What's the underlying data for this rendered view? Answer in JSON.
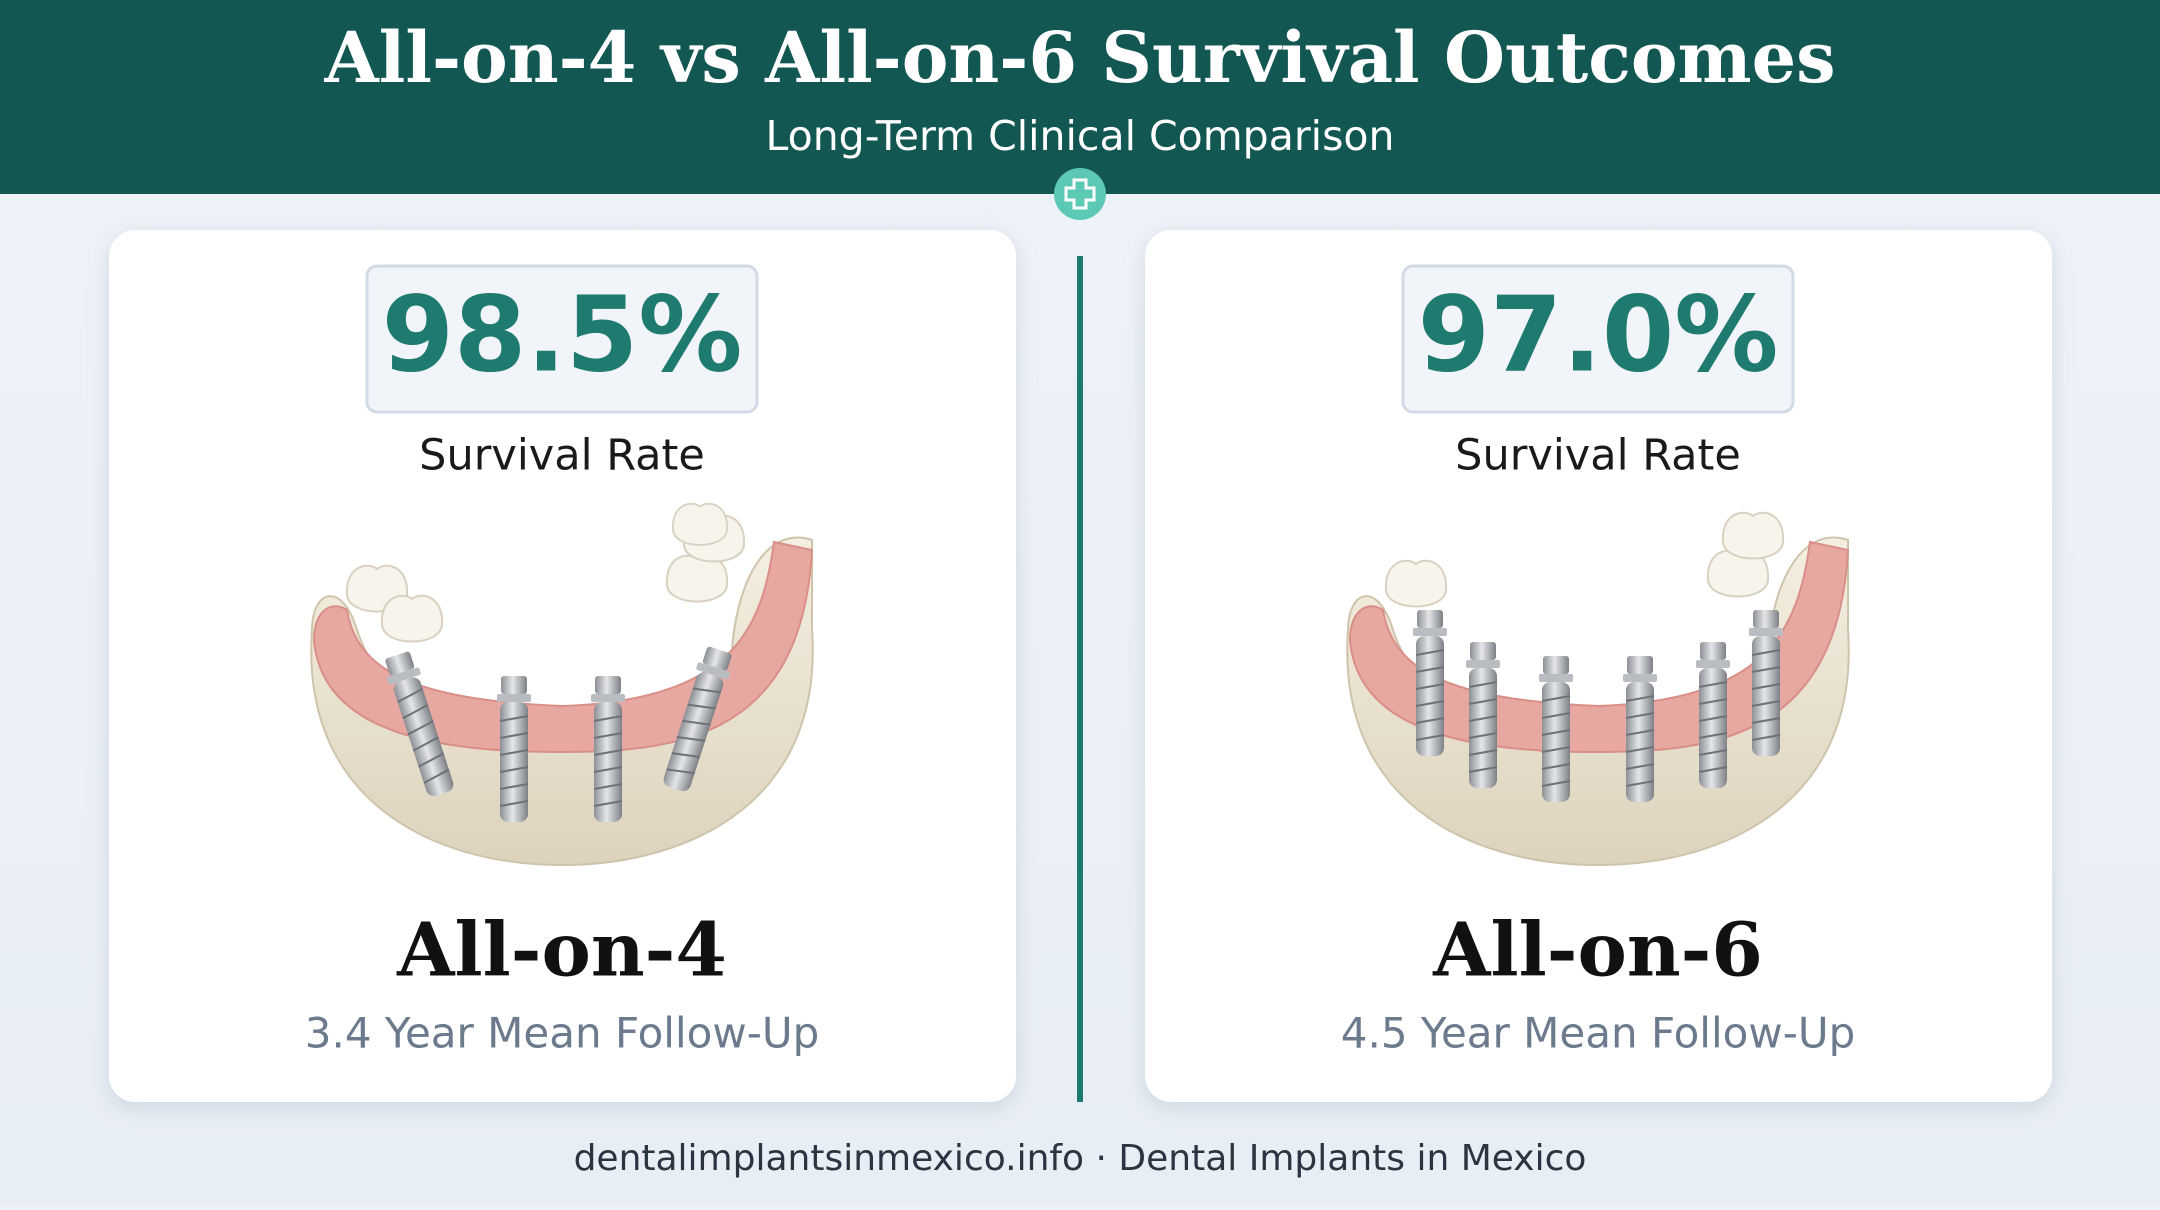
{
  "header": {
    "title": "All-on-4 vs All-on-6 Survival Outcomes",
    "subtitle": "Long-Term Clinical Comparison"
  },
  "cards": [
    {
      "rate": "98.5%",
      "rate_label": "Survival Rate",
      "name": "All-on-4",
      "follow_up": "3.4 Year Mean Follow-Up"
    },
    {
      "rate": "97.0%",
      "rate_label": "Survival Rate",
      "name": "All-on-6",
      "follow_up": "4.5 Year Mean Follow-Up"
    }
  ],
  "footer": "dentalimplantsinmexico.info · Dental Implants in Mexico"
}
